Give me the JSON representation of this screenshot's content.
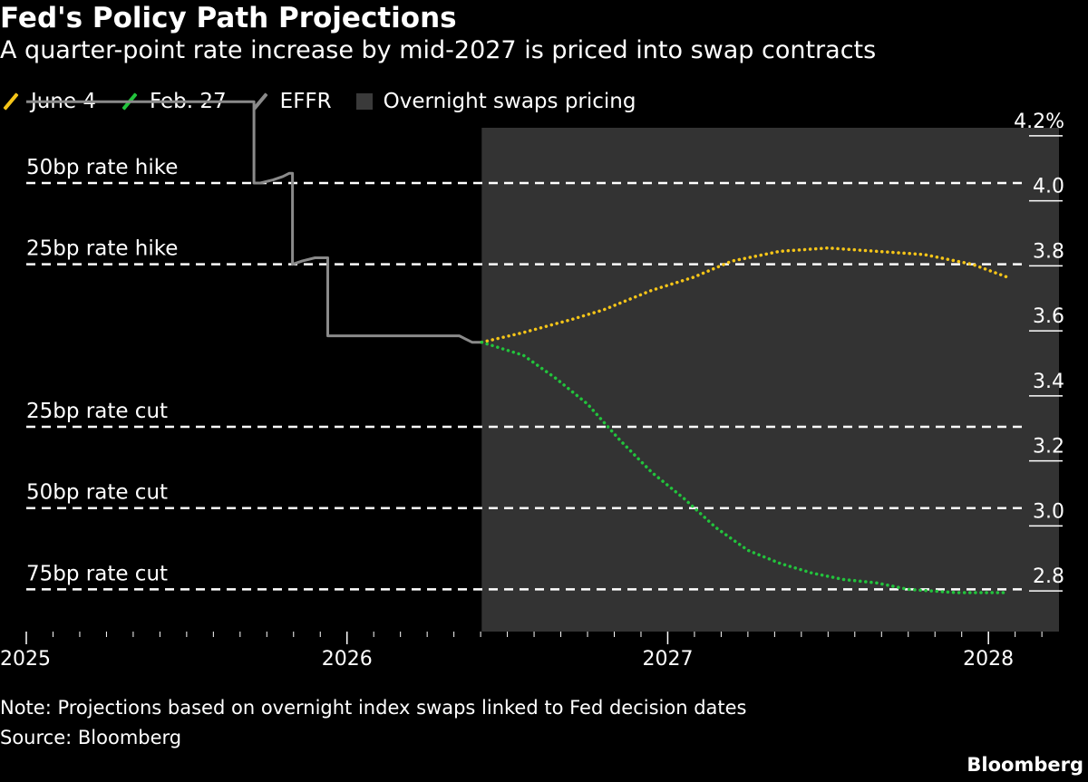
{
  "header": {
    "title": "Fed's Policy Path Projections",
    "subtitle": "A quarter-point rate increase by mid-2027 is priced into swap contracts"
  },
  "legend": {
    "items": [
      {
        "label": "June 4",
        "color": "#f5c518",
        "kind": "slash"
      },
      {
        "label": "Feb. 27",
        "color": "#22c33c",
        "kind": "slash"
      },
      {
        "label": "EFFR",
        "color": "#8a8a8a",
        "kind": "slash"
      },
      {
        "label": "Overnight swaps pricing",
        "color": "#3a3a3a",
        "kind": "box"
      }
    ]
  },
  "footer": {
    "note": "Note: Projections based on overnight index swaps linked to Fed decision dates",
    "source": "Source: Bloomberg",
    "brand": "Bloomberg"
  },
  "chart_data": {
    "type": "line",
    "ylim": [
      2.7,
      4.25
    ],
    "xlim": [
      2025.0,
      2028.22
    ],
    "y_ticks": [
      {
        "value": 4.2,
        "label": "4.2%"
      },
      {
        "value": 4.0,
        "label": "4.0"
      },
      {
        "value": 3.8,
        "label": "3.8"
      },
      {
        "value": 3.6,
        "label": "3.6"
      },
      {
        "value": 3.4,
        "label": "3.4"
      },
      {
        "value": 3.2,
        "label": "3.2"
      },
      {
        "value": 3.0,
        "label": "3.0"
      },
      {
        "value": 2.8,
        "label": "2.8"
      }
    ],
    "x_ticks": [
      {
        "value": 2025,
        "label": "2025"
      },
      {
        "value": 2026,
        "label": "2026"
      },
      {
        "value": 2027,
        "label": "2027"
      },
      {
        "value": 2028,
        "label": "2028"
      }
    ],
    "shaded_region": {
      "label": "Overnight swaps pricing",
      "x_start": 2026.42,
      "x_end": 2028.22,
      "color": "#333333"
    },
    "reference_lines": [
      {
        "label": "50bp rate hike",
        "value": 4.08
      },
      {
        "label": "25bp rate hike",
        "value": 3.83
      },
      {
        "label": "25bp rate cut",
        "value": 3.33
      },
      {
        "label": "50bp rate cut",
        "value": 3.08
      },
      {
        "label": "75bp rate cut",
        "value": 2.83
      }
    ],
    "series": [
      {
        "name": "EFFR",
        "color": "#8a8a8a",
        "style": "solid",
        "points": [
          [
            2025.0,
            4.33
          ],
          [
            2025.71,
            4.33
          ],
          [
            2025.71,
            4.08
          ],
          [
            2025.73,
            4.08
          ],
          [
            2025.77,
            4.09
          ],
          [
            2025.8,
            4.1
          ],
          [
            2025.82,
            4.11
          ],
          [
            2025.83,
            4.11
          ],
          [
            2025.83,
            3.83
          ],
          [
            2025.86,
            3.84
          ],
          [
            2025.9,
            3.85
          ],
          [
            2025.94,
            3.85
          ],
          [
            2025.94,
            3.61
          ],
          [
            2025.98,
            3.61
          ],
          [
            2026.2,
            3.61
          ],
          [
            2026.35,
            3.61
          ],
          [
            2026.37,
            3.6
          ],
          [
            2026.39,
            3.59
          ],
          [
            2026.42,
            3.59
          ]
        ]
      },
      {
        "name": "June 4",
        "color": "#f5c518",
        "style": "dotted",
        "points": [
          [
            2026.42,
            3.59
          ],
          [
            2026.55,
            3.62
          ],
          [
            2026.7,
            3.66
          ],
          [
            2026.8,
            3.69
          ],
          [
            2026.95,
            3.75
          ],
          [
            2027.08,
            3.79
          ],
          [
            2027.2,
            3.84
          ],
          [
            2027.35,
            3.87
          ],
          [
            2027.5,
            3.88
          ],
          [
            2027.65,
            3.87
          ],
          [
            2027.8,
            3.86
          ],
          [
            2027.95,
            3.83
          ],
          [
            2028.06,
            3.79
          ]
        ]
      },
      {
        "name": "Feb. 27",
        "color": "#22c33c",
        "style": "dotted",
        "points": [
          [
            2026.42,
            3.59
          ],
          [
            2026.55,
            3.55
          ],
          [
            2026.65,
            3.48
          ],
          [
            2026.75,
            3.4
          ],
          [
            2026.85,
            3.29
          ],
          [
            2026.95,
            3.19
          ],
          [
            2027.05,
            3.11
          ],
          [
            2027.15,
            3.02
          ],
          [
            2027.25,
            2.95
          ],
          [
            2027.35,
            2.91
          ],
          [
            2027.45,
            2.88
          ],
          [
            2027.55,
            2.86
          ],
          [
            2027.65,
            2.85
          ],
          [
            2027.75,
            2.83
          ],
          [
            2027.9,
            2.82
          ],
          [
            2028.06,
            2.82
          ]
        ]
      }
    ]
  }
}
